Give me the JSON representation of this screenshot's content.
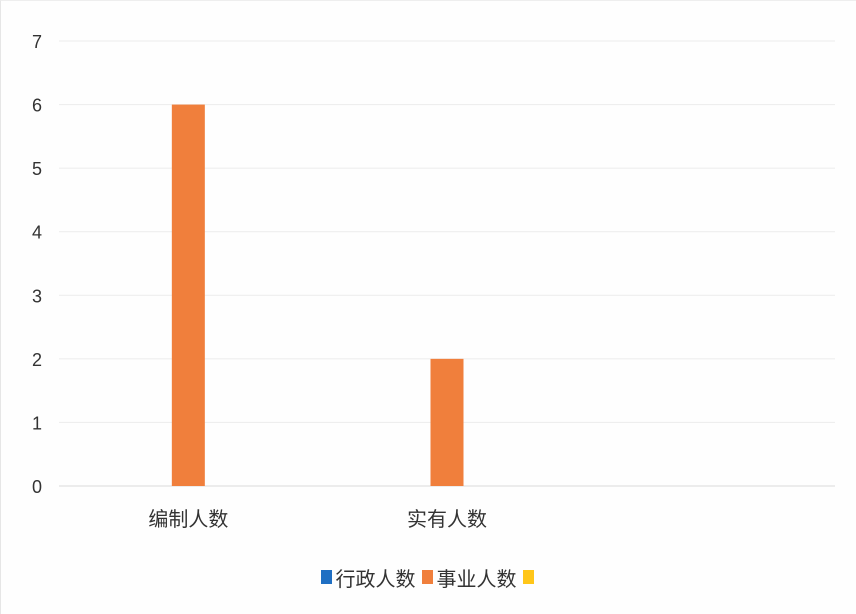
{
  "chart_data": {
    "type": "bar",
    "title": "",
    "xlabel": "",
    "ylabel": "",
    "categories": [
      "编制人数",
      "实有人数",
      ""
    ],
    "series": [
      {
        "name": "行政人数",
        "color": "#1f6fc3",
        "values": [
          0,
          0,
          0
        ]
      },
      {
        "name": "事业人数",
        "color": "#f07f3c",
        "values": [
          6,
          2,
          0
        ]
      },
      {
        "name": "",
        "color": "#ffc619",
        "values": [
          0,
          0,
          0
        ]
      }
    ],
    "ylim": [
      0,
      7
    ],
    "yticks": [
      "0",
      "1",
      "2",
      "3",
      "4",
      "5",
      "6",
      "7"
    ],
    "grid": true,
    "legend": "bottom"
  }
}
